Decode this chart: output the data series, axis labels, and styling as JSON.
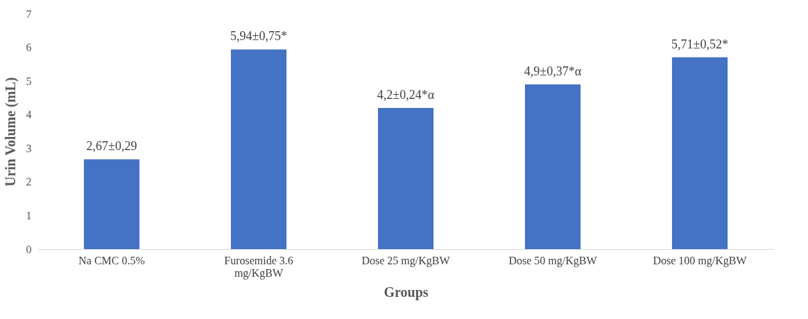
{
  "chart_data": {
    "type": "bar",
    "xlabel": "Groups",
    "ylabel": "Urin Volume (mL)",
    "categories": [
      "Na CMC 0.5%",
      "Furosemide 3.6 mg/KgBW",
      "Dose 25 mg/KgBW",
      "Dose 50 mg/KgBW",
      "Dose 100 mg/KgBW"
    ],
    "values": [
      2.67,
      5.94,
      4.2,
      4.9,
      5.71
    ],
    "value_labels": [
      "2,67±0,29",
      "5,94±0,75*",
      "4,2±0,24*α",
      "4,9±0,37*α",
      "5,71±0,52*"
    ],
    "color": "#4472c4",
    "ylim": [
      0,
      7
    ],
    "yticks": [
      0,
      1,
      2,
      3,
      4,
      5,
      6,
      7
    ],
    "grid": false
  }
}
